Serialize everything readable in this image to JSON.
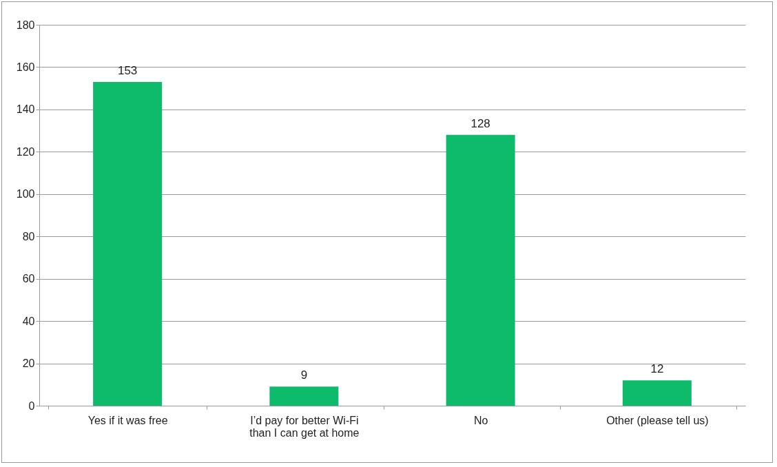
{
  "chart_data": {
    "type": "bar",
    "categories": [
      "Yes if it was free",
      "I’d pay for better Wi-Fi than I can get at home",
      "No",
      "Other (please tell us)"
    ],
    "values": [
      153,
      9,
      128,
      12
    ],
    "color": "#0dbb6a",
    "ylim": [
      0,
      180
    ],
    "yticks": [
      0,
      20,
      40,
      60,
      80,
      100,
      120,
      140,
      160,
      180
    ],
    "grid": "y",
    "data_labels": true
  }
}
